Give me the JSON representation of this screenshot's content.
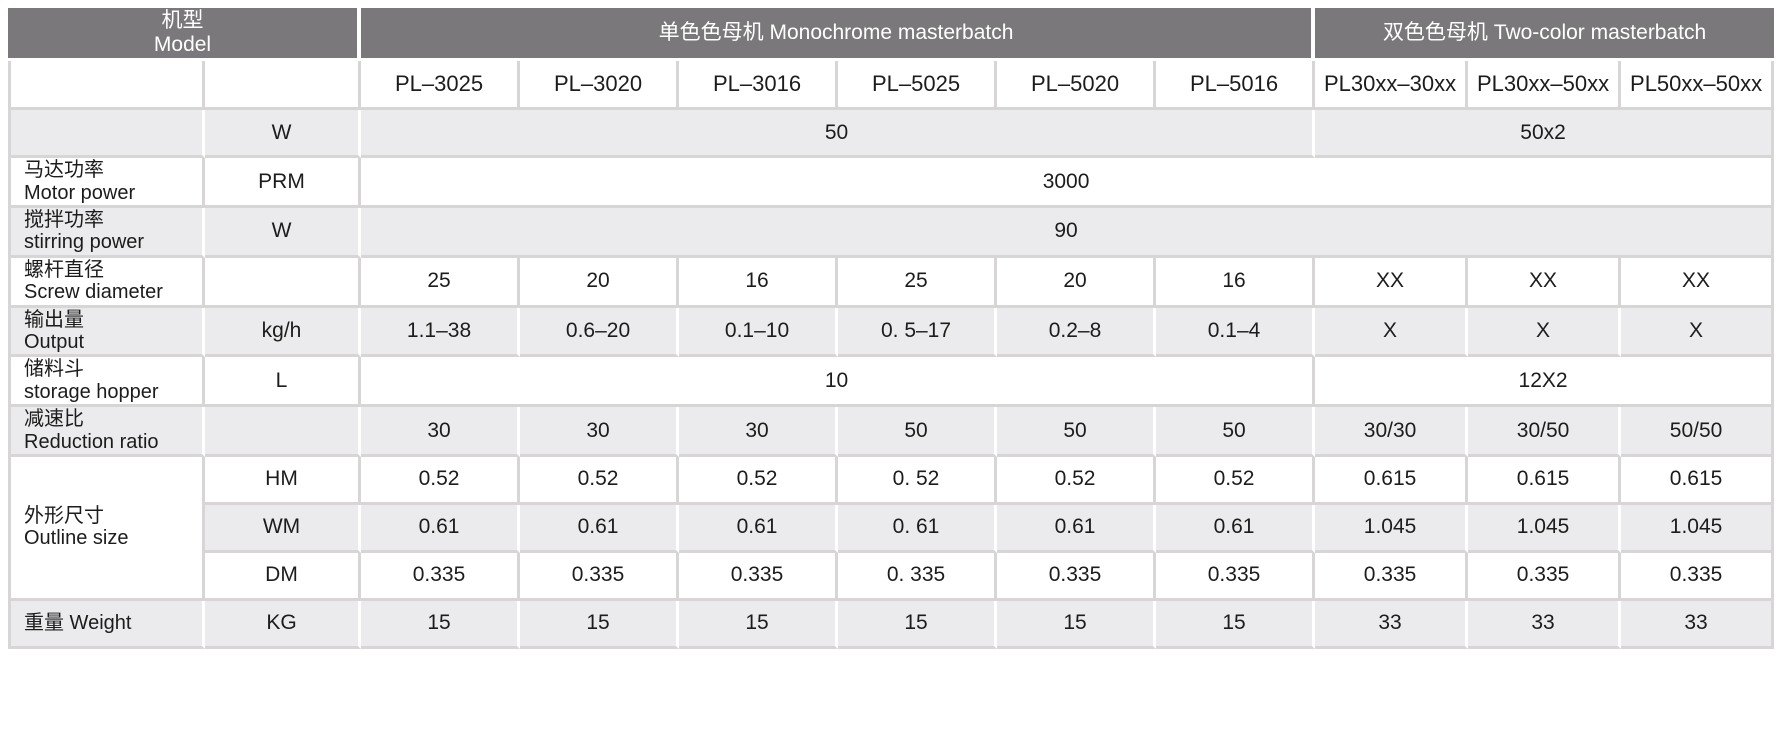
{
  "colors": {
    "header_bg": "#7a787a",
    "header_text": "#ffffff",
    "shaded_row_bg": "#ebeaec",
    "white_row_bg": "#ffffff",
    "gridline": "#d7d5d6",
    "text": "#1c1c1c"
  },
  "table": {
    "header": {
      "model_zh": "机型",
      "model_en": "Model",
      "monochrome_group": "单色色母机 Monochrome masterbatch",
      "two_color_group": "双色色母机 Two-color masterbatch"
    },
    "models": [
      "PL–3025",
      "PL–3020",
      "PL–3016",
      "PL–5025",
      "PL–5020",
      "PL–5016",
      "PL30xx–30xx",
      "PL30xx–50xx",
      "PL50xx–50xx"
    ],
    "rows": [
      {
        "label": [
          "",
          ""
        ],
        "unit": "W",
        "shaded": true,
        "cells": [
          {
            "t": "50",
            "s": 6
          },
          {
            "t": "50x2",
            "s": 3
          }
        ]
      },
      {
        "label": [
          "马达功率",
          "Motor power"
        ],
        "unit": "PRM",
        "shaded": false,
        "cells": [
          {
            "t": "3000",
            "s": 9
          }
        ]
      },
      {
        "label": [
          "搅拌功率",
          "stirring power"
        ],
        "unit": "W",
        "shaded": true,
        "cells": [
          {
            "t": "90",
            "s": 9
          }
        ]
      },
      {
        "label": [
          "螺杆直径",
          "Screw diameter"
        ],
        "unit": "",
        "shaded": false,
        "cells": [
          {
            "t": "25"
          },
          {
            "t": "20"
          },
          {
            "t": "16"
          },
          {
            "t": "25"
          },
          {
            "t": "20"
          },
          {
            "t": "16"
          },
          {
            "t": "XX"
          },
          {
            "t": "XX"
          },
          {
            "t": "XX"
          }
        ]
      },
      {
        "label": [
          "输出量",
          "Output"
        ],
        "unit": "kg/h",
        "shaded": true,
        "cells": [
          {
            "t": "1.1–38"
          },
          {
            "t": "0.6–20"
          },
          {
            "t": "0.1–10"
          },
          {
            "t": "0. 5–17"
          },
          {
            "t": "0.2–8"
          },
          {
            "t": "0.1–4"
          },
          {
            "t": "X"
          },
          {
            "t": "X"
          },
          {
            "t": "X"
          }
        ]
      },
      {
        "label": [
          "储料斗",
          "storage hopper"
        ],
        "unit": "L",
        "shaded": false,
        "cells": [
          {
            "t": "10",
            "s": 6
          },
          {
            "t": "12X2",
            "s": 3
          }
        ]
      },
      {
        "label": [
          "减速比",
          "Reduction ratio"
        ],
        "unit": "",
        "shaded": true,
        "cells": [
          {
            "t": "30"
          },
          {
            "t": "30"
          },
          {
            "t": "30"
          },
          {
            "t": "50"
          },
          {
            "t": "50"
          },
          {
            "t": "50"
          },
          {
            "t": "30/30"
          },
          {
            "t": "30/50"
          },
          {
            "t": "50/50"
          }
        ]
      },
      {
        "label": [
          "外形尺寸",
          "Outline size"
        ],
        "label_rowspan": 3,
        "unit": "HM",
        "shaded": false,
        "cells": [
          {
            "t": "0.52"
          },
          {
            "t": "0.52"
          },
          {
            "t": "0.52"
          },
          {
            "t": "0. 52"
          },
          {
            "t": "0.52"
          },
          {
            "t": "0.52"
          },
          {
            "t": "0.615"
          },
          {
            "t": "0.615"
          },
          {
            "t": "0.615"
          }
        ]
      },
      {
        "label": null,
        "unit": "WM",
        "shaded": true,
        "cells": [
          {
            "t": "0.61"
          },
          {
            "t": "0.61"
          },
          {
            "t": "0.61"
          },
          {
            "t": "0. 61"
          },
          {
            "t": "0.61"
          },
          {
            "t": "0.61"
          },
          {
            "t": "1.045"
          },
          {
            "t": "1.045"
          },
          {
            "t": "1.045"
          }
        ]
      },
      {
        "label": null,
        "unit": "DM",
        "shaded": false,
        "cells": [
          {
            "t": "0.335"
          },
          {
            "t": "0.335"
          },
          {
            "t": "0.335"
          },
          {
            "t": "0. 335"
          },
          {
            "t": "0.335"
          },
          {
            "t": "0.335"
          },
          {
            "t": "0.335"
          },
          {
            "t": "0.335"
          },
          {
            "t": "0.335"
          }
        ]
      },
      {
        "label": [
          "重量 Weight",
          ""
        ],
        "unit": "KG",
        "shaded": true,
        "cells": [
          {
            "t": "15"
          },
          {
            "t": "15"
          },
          {
            "t": "15"
          },
          {
            "t": "15"
          },
          {
            "t": "15"
          },
          {
            "t": "15"
          },
          {
            "t": "33"
          },
          {
            "t": "33"
          },
          {
            "t": "33"
          }
        ]
      }
    ]
  }
}
